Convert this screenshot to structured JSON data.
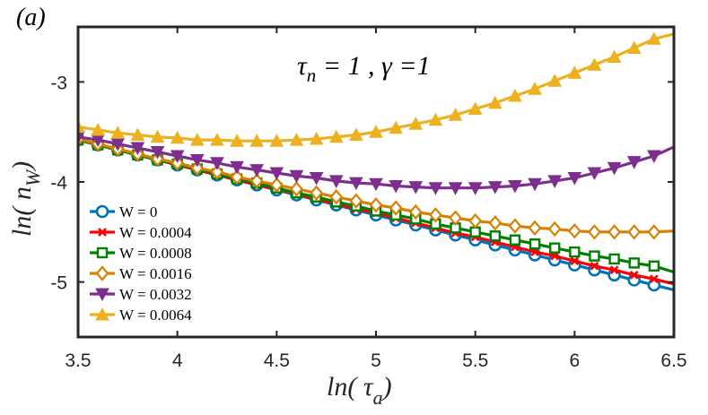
{
  "chart_data": {
    "type": "line",
    "panel_label": "(a)",
    "annotation": {
      "tau": "τ",
      "sub_n": "n",
      "eq1": " = 1 , ",
      "gamma": "γ",
      "eq2": " =1"
    },
    "xlabel": {
      "prefix": "ln( ",
      "tau": "τ",
      "sub": "a",
      "suffix": ")"
    },
    "ylabel": {
      "prefix": "ln( n",
      "sub": "W",
      "suffix": ")"
    },
    "xlim": [
      3.5,
      6.5
    ],
    "ylim": [
      -5.55,
      -2.45
    ],
    "xticks": [
      3.5,
      4,
      4.5,
      5,
      5.5,
      6,
      6.5
    ],
    "xtick_labels": [
      "3.5",
      "4",
      "4.5",
      "5",
      "5.5",
      "6",
      "6.5"
    ],
    "yticks": [
      -5,
      -4,
      -3
    ],
    "ytick_labels": [
      "-5",
      "-4",
      "-3"
    ],
    "marker_x": [
      3.5,
      3.6,
      3.7,
      3.8,
      3.9,
      4.0,
      4.1,
      4.2,
      4.3,
      4.4,
      4.5,
      4.6,
      4.7,
      4.8,
      4.9,
      5.0,
      5.1,
      5.2,
      5.3,
      5.4,
      5.5,
      5.6,
      5.7,
      5.8,
      5.9,
      6.0,
      6.1,
      6.2,
      6.3,
      6.4
    ],
    "series": [
      {
        "name": "W = 0",
        "color": "#0072BD",
        "marker": "circle",
        "values": [
          -3.58,
          -3.63,
          -3.68,
          -3.73,
          -3.78,
          -3.83,
          -3.88,
          -3.93,
          -3.98,
          -4.03,
          -4.08,
          -4.13,
          -4.18,
          -4.23,
          -4.28,
          -4.33,
          -4.38,
          -4.43,
          -4.48,
          -4.53,
          -4.58,
          -4.63,
          -4.68,
          -4.73,
          -4.78,
          -4.83,
          -4.88,
          -4.93,
          -4.98,
          -5.03
        ],
        "end": [
          6.5,
          -5.08
        ]
      },
      {
        "name": "W = 0.0004",
        "color": "#FF0000",
        "marker": "x",
        "values": [
          -3.58,
          -3.63,
          -3.68,
          -3.73,
          -3.78,
          -3.83,
          -3.88,
          -3.93,
          -3.98,
          -4.03,
          -4.07,
          -4.12,
          -4.17,
          -4.22,
          -4.27,
          -4.31,
          -4.36,
          -4.41,
          -4.46,
          -4.51,
          -4.55,
          -4.6,
          -4.65,
          -4.7,
          -4.74,
          -4.79,
          -4.84,
          -4.88,
          -4.93,
          -4.97
        ],
        "end": [
          6.5,
          -5.02
        ]
      },
      {
        "name": "W = 0.0008",
        "color": "#008000",
        "marker": "square",
        "values": [
          -3.58,
          -3.63,
          -3.68,
          -3.73,
          -3.78,
          -3.82,
          -3.87,
          -3.92,
          -3.97,
          -4.01,
          -4.06,
          -4.11,
          -4.15,
          -4.2,
          -4.24,
          -4.29,
          -4.33,
          -4.37,
          -4.42,
          -4.46,
          -4.5,
          -4.54,
          -4.58,
          -4.62,
          -4.66,
          -4.7,
          -4.74,
          -4.77,
          -4.81,
          -4.84
        ],
        "end": [
          6.5,
          -4.9
        ]
      },
      {
        "name": "W = 0.0016",
        "color": "#D98000",
        "marker": "diamond",
        "values": [
          -3.57,
          -3.62,
          -3.67,
          -3.72,
          -3.77,
          -3.81,
          -3.86,
          -3.9,
          -3.95,
          -3.99,
          -4.03,
          -4.07,
          -4.11,
          -4.15,
          -4.19,
          -4.23,
          -4.26,
          -4.3,
          -4.33,
          -4.36,
          -4.39,
          -4.41,
          -4.44,
          -4.46,
          -4.47,
          -4.49,
          -4.5,
          -4.5,
          -4.5,
          -4.5
        ],
        "end": [
          6.5,
          -4.49
        ]
      },
      {
        "name": "W = 0.0032",
        "color": "#7E2F8E",
        "marker": "triangle-down",
        "values": [
          -3.55,
          -3.58,
          -3.62,
          -3.66,
          -3.7,
          -3.74,
          -3.78,
          -3.81,
          -3.85,
          -3.88,
          -3.91,
          -3.94,
          -3.96,
          -3.99,
          -4.01,
          -4.02,
          -4.04,
          -4.05,
          -4.06,
          -4.06,
          -4.06,
          -4.05,
          -4.04,
          -4.02,
          -3.99,
          -3.96,
          -3.91,
          -3.86,
          -3.8,
          -3.74
        ],
        "end": [
          6.5,
          -3.65
        ]
      },
      {
        "name": "W = 0.0064",
        "color": "#EDB120",
        "marker": "triangle-up",
        "values": [
          -3.45,
          -3.48,
          -3.51,
          -3.53,
          -3.55,
          -3.56,
          -3.58,
          -3.58,
          -3.59,
          -3.59,
          -3.59,
          -3.58,
          -3.57,
          -3.55,
          -3.53,
          -3.5,
          -3.46,
          -3.42,
          -3.38,
          -3.33,
          -3.27,
          -3.21,
          -3.14,
          -3.07,
          -2.99,
          -2.91,
          -2.83,
          -2.75,
          -2.66,
          -2.57
        ],
        "end": [
          6.5,
          -2.52
        ]
      }
    ]
  }
}
